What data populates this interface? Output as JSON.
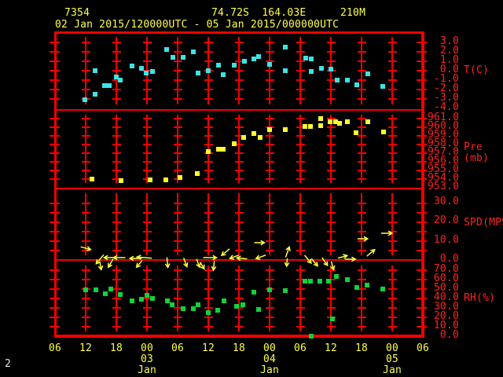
{
  "header": {
    "station_id": "7354",
    "coordinates": "74.72S  164.03E",
    "elevation": "210M",
    "time_range": "02 Jan 2015/120000UTC - 05 Jan 2015/000000UTC"
  },
  "footer": {
    "page_number": "2"
  },
  "colors": {
    "background": "#000000",
    "grid_red": "#f20000",
    "axis_label_red": "#ff2222",
    "text_yellow": "#ffff42",
    "temperature_cyan": "#3fe2e2",
    "pressure_yellow": "#ffff2e",
    "humidity_green": "#10d23c",
    "wind_yellow": "#ffff42",
    "page_number_white": "#e6e6e6"
  },
  "chart_data": {
    "type": "scatter",
    "title": "",
    "x_axis": {
      "tick_labels": [
        "06",
        "12",
        "18",
        "00",
        "06",
        "12",
        "18",
        "00",
        "06",
        "12",
        "18",
        "00",
        "06"
      ],
      "tick_interval_hours": 6,
      "total_hours": 72,
      "date_labels": [
        {
          "label": "03 Jan",
          "hour": 18
        },
        {
          "label": "04 Jan",
          "hour": 42
        },
        {
          "label": "05 Jan",
          "hour": 66
        }
      ]
    },
    "panels": [
      {
        "name": "temperature",
        "ylabel": "T(C)",
        "ymin": -4,
        "ymax": 4,
        "tick_labels": [
          "3.0",
          "2.0",
          "1.0",
          "0.0",
          "-1.0",
          "-2.0",
          "-3.0",
          "-4.0"
        ],
        "color": "#3fe2e2",
        "series": {
          "t": [
            5.8,
            7.8,
            7.8,
            9.7,
            10.6,
            12.0,
            12.8,
            15.1,
            16.9,
            17.8,
            19.1,
            21.8,
            23.1,
            25.1,
            27.1,
            28.0,
            30.0,
            32.0,
            32.9,
            35.1,
            37.1,
            38.9,
            39.8,
            42.0,
            45.1,
            45.1,
            49.1,
            50.2,
            50.2,
            52.2,
            54.0,
            55.2,
            57.2,
            59.1,
            61.2,
            64.2
          ],
          "v": [
            -3.1,
            -2.5,
            0.0,
            -1.6,
            -1.6,
            -0.7,
            -1.0,
            0.5,
            0.25,
            -0.25,
            -0.1,
            2.25,
            1.4,
            1.4,
            2.0,
            -0.25,
            0.0,
            0.6,
            -0.4,
            0.6,
            1.0,
            1.25,
            1.5,
            0.65,
            2.5,
            0.0,
            1.35,
            1.25,
            -0.1,
            0.25,
            0.15,
            -1.0,
            -1.0,
            -1.5,
            -0.35,
            -1.65
          ]
        }
      },
      {
        "name": "pressure",
        "ylabel": "Pre (mb)",
        "ymin": 953,
        "ymax": 962,
        "tick_labels": [
          "961.0",
          "960.0",
          "959.0",
          "958.0",
          "957.0",
          "956.0",
          "955.0",
          "954.0",
          "953.0"
        ],
        "color": "#ffff2e",
        "series": {
          "t": [
            7.2,
            12.9,
            18.6,
            21.7,
            24.5,
            27.8,
            30.0,
            32.0,
            32.9,
            35.1,
            36.9,
            38.9,
            40.2,
            42.0,
            45.1,
            48.9,
            50.0,
            52.0,
            52.0,
            53.8,
            54.9,
            55.7,
            57.2,
            58.9,
            61.2,
            64.3
          ],
          "v": [
            954.0,
            953.8,
            953.9,
            953.9,
            954.2,
            954.6,
            957.2,
            957.5,
            957.5,
            958.1,
            958.8,
            959.3,
            958.8,
            959.7,
            959.7,
            960.1,
            960.1,
            961.0,
            960.2,
            960.6,
            960.6,
            960.5,
            960.6,
            959.4,
            960.6,
            959.5
          ]
        }
      },
      {
        "name": "wind_speed",
        "ylabel": "SPD(MPS)",
        "ymin": 0,
        "ymax": 30,
        "tick_labels": [
          "30.0",
          "20.0",
          "10.0",
          "0.0"
        ],
        "color": "#ffff42",
        "arrows_note": "each arrow: [hours_from_start, y_offset_px_from_zero_line, direction_deg_clockwise_from_east, length_px]",
        "arrows": [
          [
            6.0,
            -15,
            15,
            13
          ],
          [
            8.8,
            -1,
            130,
            15
          ],
          [
            8.9,
            7,
            80,
            11
          ],
          [
            10.6,
            -3,
            180,
            13
          ],
          [
            10.9,
            4,
            120,
            12
          ],
          [
            12.6,
            -3,
            180,
            15
          ],
          [
            15.8,
            -2,
            180,
            15
          ],
          [
            16.5,
            5,
            130,
            11
          ],
          [
            17.5,
            -3,
            185,
            19
          ],
          [
            22.0,
            3,
            85,
            13
          ],
          [
            25.5,
            3,
            70,
            12
          ],
          [
            28.0,
            4,
            70,
            11
          ],
          [
            28.8,
            7,
            60,
            10
          ],
          [
            30.3,
            -3,
            0,
            17
          ],
          [
            31.1,
            7,
            95,
            12
          ],
          [
            33.4,
            -10,
            140,
            13
          ],
          [
            35.1,
            -4,
            160,
            12
          ],
          [
            36.6,
            -2,
            185,
            13
          ],
          [
            40.0,
            -22,
            0,
            13
          ],
          [
            40.3,
            -4,
            160,
            13
          ],
          [
            45.5,
            -10,
            290,
            14
          ],
          [
            45.4,
            3,
            95,
            10
          ],
          [
            49.5,
            -1,
            50,
            13
          ],
          [
            50.8,
            3,
            50,
            12
          ],
          [
            52.8,
            2,
            55,
            12
          ],
          [
            54.3,
            7,
            75,
            11
          ],
          [
            56.3,
            -4,
            345,
            12
          ],
          [
            57.8,
            -1,
            0,
            13
          ],
          [
            60.2,
            -27,
            0,
            13
          ],
          [
            61.8,
            -9,
            320,
            13
          ],
          [
            64.9,
            -34,
            0,
            14
          ]
        ]
      },
      {
        "name": "relative_humidity",
        "ylabel": "RH(%)",
        "ymin": 0,
        "ymax": 70,
        "tick_labels": [
          "70.0",
          "60.0",
          "50.0",
          "40.0",
          "30.0",
          "20.0",
          "10.0",
          "0.0"
        ],
        "color": "#10d23c",
        "series": {
          "t": [
            6.0,
            8.0,
            9.8,
            10.9,
            12.8,
            15.1,
            16.9,
            18.0,
            19.1,
            22.0,
            22.9,
            25.1,
            27.1,
            28.0,
            30.0,
            31.8,
            33.1,
            35.5,
            36.8,
            38.9,
            39.8,
            42.0,
            45.1,
            48.9,
            50.0,
            50.2,
            51.8,
            53.5,
            54.3,
            55.1,
            57.2,
            59.1,
            61.1,
            64.2
          ],
          "v": [
            49,
            49,
            45,
            50,
            44,
            37.5,
            39,
            43,
            40,
            37.5,
            33,
            29,
            29,
            33,
            25,
            27.5,
            37.5,
            31.5,
            33,
            47,
            28,
            49,
            48,
            58,
            58,
            0,
            58,
            58,
            18,
            63,
            60,
            52,
            54,
            50
          ]
        }
      }
    ]
  }
}
